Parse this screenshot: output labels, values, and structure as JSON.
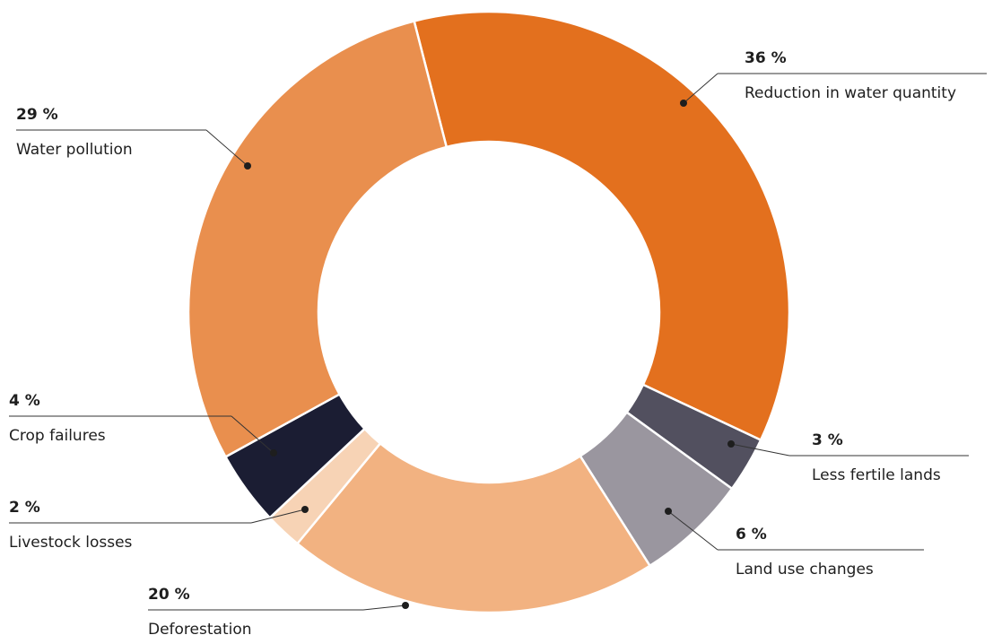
{
  "chart_data": {
    "type": "donut",
    "categories": [
      "Reduction in water quantity",
      "Less fertile lands",
      "Land use changes",
      "Deforestation",
      "Livestock losses",
      "Crop failures",
      "Water pollution"
    ],
    "values": [
      36,
      3,
      6,
      20,
      2,
      4,
      29
    ],
    "value_labels": [
      "36 %",
      "3 %",
      "6 %",
      "20 %",
      "2 %",
      "4 %",
      "29 %"
    ],
    "colors": [
      "#e3701e",
      "#52505f",
      "#9a969f",
      "#f2b281",
      "#f7d3b5",
      "#1b1d33",
      "#e98f4e"
    ]
  }
}
